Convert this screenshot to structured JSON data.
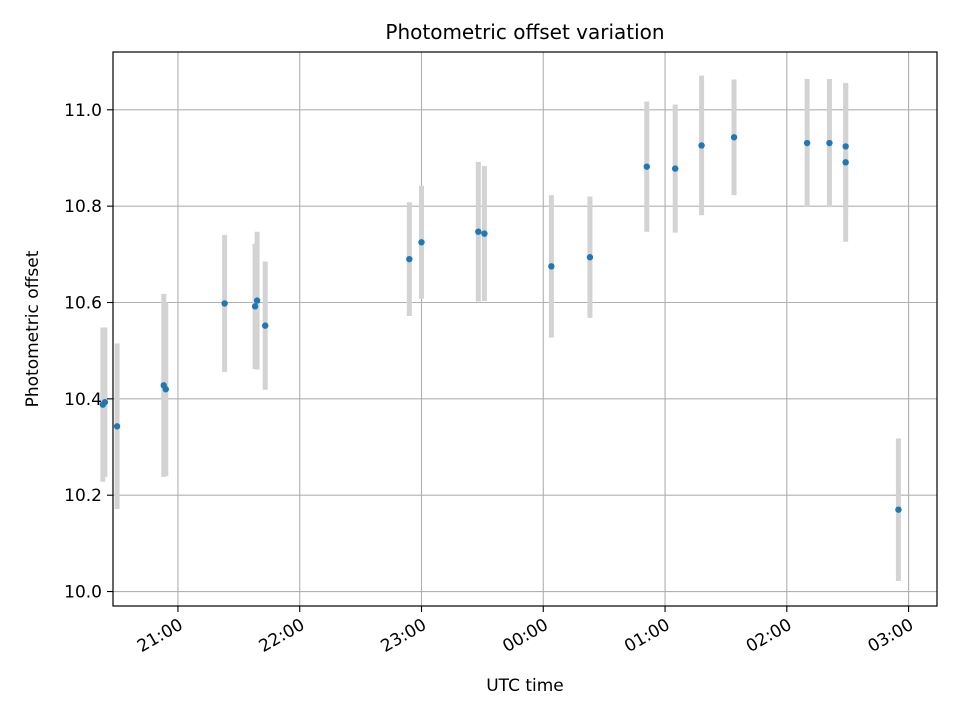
{
  "chart_data": {
    "type": "scatter",
    "title": "Photometric offset variation",
    "xlabel": "UTC time",
    "ylabel": "Photometric offset",
    "x_ticks": [
      "21:00",
      "22:00",
      "23:00",
      "00:00",
      "01:00",
      "02:00",
      "03:00"
    ],
    "x_tick_label_rotation_deg": 30,
    "y_ticks": [
      10.0,
      10.2,
      10.4,
      10.6,
      10.8,
      11.0
    ],
    "y_tick_labels": [
      "10.0",
      "10.2",
      "10.4",
      "10.6",
      "10.8",
      "11.0"
    ],
    "xlim": [
      "20:28",
      "03:14"
    ],
    "ylim": [
      9.97,
      11.12
    ],
    "grid": true,
    "colors": {
      "points": "#1f77b4",
      "errorbars": "#d3d3d3",
      "grid": "#b0b0b0"
    },
    "points": [
      {
        "x": "20:23",
        "y": 10.388,
        "yerr": 0.16
      },
      {
        "x": "20:24",
        "y": 10.393,
        "yerr": 0.155
      },
      {
        "x": "20:30",
        "y": 10.343,
        "yerr": 0.172
      },
      {
        "x": "20:53",
        "y": 10.428,
        "yerr": 0.19
      },
      {
        "x": "20:54",
        "y": 10.42,
        "yerr": 0.18
      },
      {
        "x": "21:23",
        "y": 10.598,
        "yerr": 0.142
      },
      {
        "x": "21:38",
        "y": 10.592,
        "yerr": 0.13
      },
      {
        "x": "21:39",
        "y": 10.604,
        "yerr": 0.143
      },
      {
        "x": "21:43",
        "y": 10.552,
        "yerr": 0.133
      },
      {
        "x": "22:54",
        "y": 10.69,
        "yerr": 0.118
      },
      {
        "x": "23:00",
        "y": 10.725,
        "yerr": 0.117
      },
      {
        "x": "23:28",
        "y": 10.747,
        "yerr": 0.145
      },
      {
        "x": "23:31",
        "y": 10.743,
        "yerr": 0.14
      },
      {
        "x": "00:04",
        "y": 10.675,
        "yerr": 0.148
      },
      {
        "x": "00:23",
        "y": 10.694,
        "yerr": 0.126
      },
      {
        "x": "00:51",
        "y": 10.882,
        "yerr": 0.135
      },
      {
        "x": "01:05",
        "y": 10.878,
        "yerr": 0.133
      },
      {
        "x": "01:18",
        "y": 10.926,
        "yerr": 0.145
      },
      {
        "x": "01:34",
        "y": 10.943,
        "yerr": 0.12
      },
      {
        "x": "02:10",
        "y": 10.931,
        "yerr": 0.133
      },
      {
        "x": "02:21",
        "y": 10.931,
        "yerr": 0.133
      },
      {
        "x": "02:29",
        "y": 10.924,
        "yerr": 0.13
      },
      {
        "x": "02:29",
        "y": 10.891,
        "yerr": 0.165
      },
      {
        "x": "02:55",
        "y": 10.17,
        "yerr": 0.148
      }
    ]
  }
}
